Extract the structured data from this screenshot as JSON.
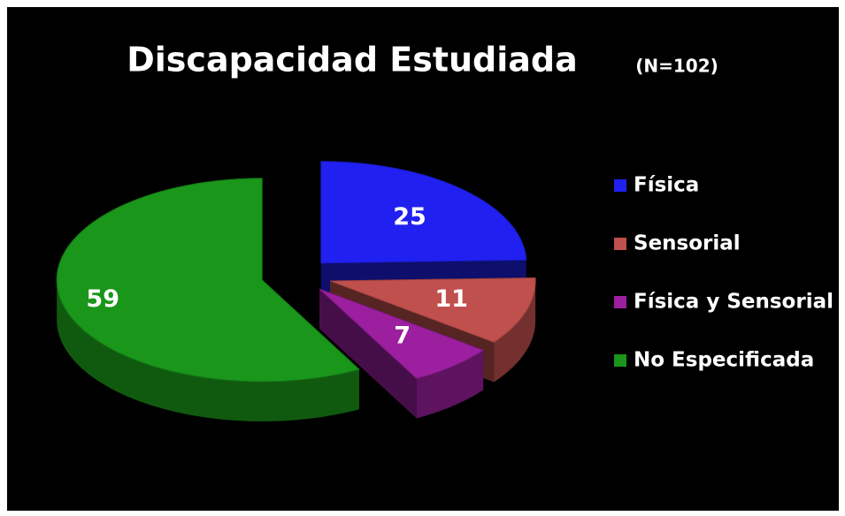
{
  "chart_data": {
    "type": "pie3d",
    "title": "Discapacidad Estudiada",
    "subtitle": "(N=102)",
    "categories": [
      "Física",
      "Sensorial",
      "Física y Sensorial",
      "No Especificada"
    ],
    "values": [
      25,
      11,
      7,
      59
    ],
    "colors": [
      "#2020f0",
      "#c0504d",
      "#9b1f9f",
      "#1a961a"
    ]
  }
}
